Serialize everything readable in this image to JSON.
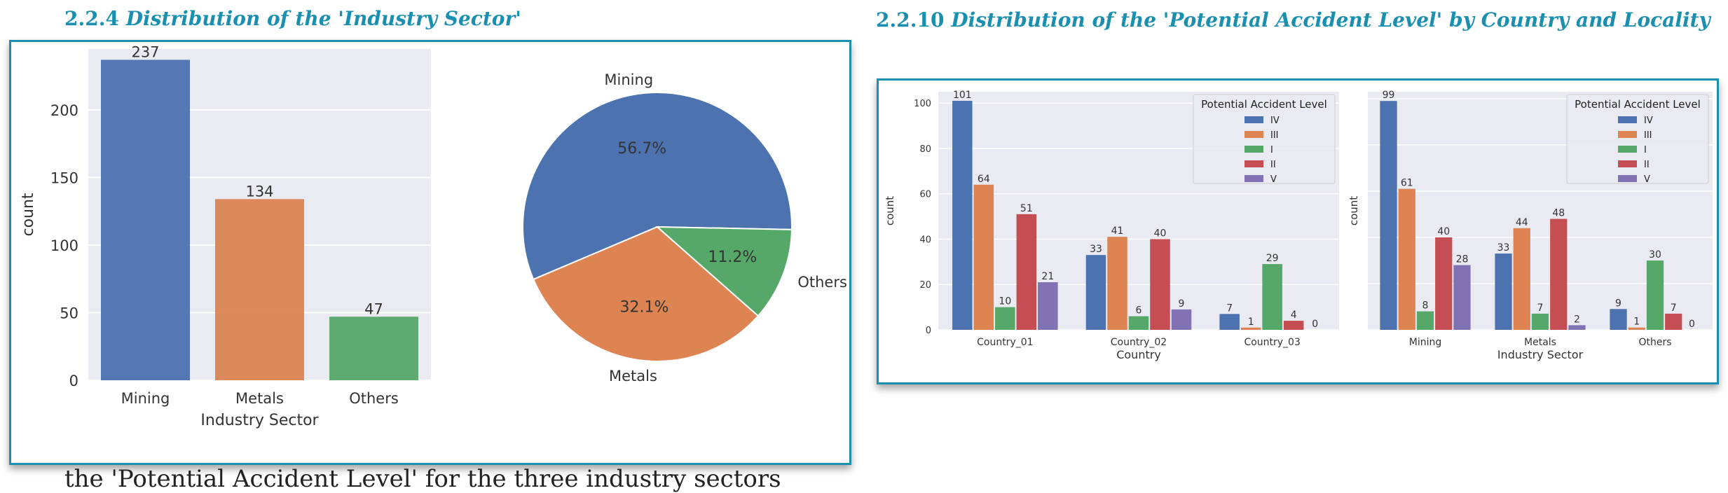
{
  "headings": {
    "left": {
      "number": "2.2.4",
      "text": "Distribution of  the 'Industry Sector'"
    },
    "right": {
      "number": "2.2.10",
      "text": "Distribution of the 'Potential Accident Level' by Country and Locality"
    }
  },
  "colors": {
    "blue": "#4c72b0",
    "orange": "#dd8452",
    "green": "#55a868",
    "red": "#c44e52",
    "purple": "#8172b3",
    "accent": "#1a8fb0",
    "grid_bg": "#eaeaf2"
  },
  "footer_text": "the 'Potential Accident Level' for the three industry sectors",
  "chart_data": [
    {
      "type": "bar",
      "categories": [
        "Mining",
        "Metals",
        "Others"
      ],
      "values": [
        237,
        134,
        47
      ],
      "value_labels": [
        "237",
        "134",
        "47"
      ],
      "xlabel": "Industry Sector",
      "ylabel": "count",
      "ylim": [
        0,
        245
      ],
      "yticks": [
        0,
        50,
        100,
        150,
        200
      ],
      "ytick_labels": [
        "0",
        "50",
        "100",
        "150",
        "200"
      ],
      "colors": [
        "#4c72b0",
        "#dd8452",
        "#55a868"
      ]
    },
    {
      "type": "pie",
      "labels": [
        "Mining",
        "Metals",
        "Others"
      ],
      "values": [
        56.7,
        32.1,
        11.2
      ],
      "pct_labels": [
        "56.7%",
        "32.1%",
        "11.2%"
      ],
      "colors": [
        "#4c72b0",
        "#dd8452",
        "#55a868"
      ]
    },
    {
      "type": "bar",
      "categories": [
        "Country_01",
        "Country_02",
        "Country_03"
      ],
      "xlabel": "Country",
      "ylabel": "count",
      "ylim": [
        0,
        105
      ],
      "yticks": [
        0,
        20,
        40,
        60,
        80,
        100
      ],
      "ytick_labels": [
        "0",
        "20",
        "40",
        "60",
        "80",
        "100"
      ],
      "legend_title": "Potential Accident Level",
      "legend_position": "top-right",
      "series": [
        {
          "name": "IV",
          "values": [
            101,
            33,
            7
          ]
        },
        {
          "name": "III",
          "values": [
            64,
            41,
            1
          ]
        },
        {
          "name": "I",
          "values": [
            10,
            6,
            29
          ]
        },
        {
          "name": "II",
          "values": [
            51,
            40,
            4
          ]
        },
        {
          "name": "V",
          "values": [
            21,
            9,
            0
          ]
        }
      ],
      "value_labels": [
        [
          "101",
          "33",
          "7"
        ],
        [
          "64",
          "41",
          "1"
        ],
        [
          "10",
          "6",
          "29"
        ],
        [
          "51",
          "40",
          "4"
        ],
        [
          "21",
          "9",
          "0"
        ]
      ]
    },
    {
      "type": "bar",
      "categories": [
        "Mining",
        "Metals",
        "Others"
      ],
      "xlabel": "Industry Sector",
      "ylabel": "count",
      "ylim": [
        0,
        103
      ],
      "legend_title": "Potential Accident Level",
      "legend_position": "top-right",
      "series": [
        {
          "name": "IV",
          "values": [
            99,
            33,
            9
          ]
        },
        {
          "name": "III",
          "values": [
            61,
            44,
            1
          ]
        },
        {
          "name": "I",
          "values": [
            8,
            7,
            30
          ]
        },
        {
          "name": "II",
          "values": [
            40,
            48,
            7
          ]
        },
        {
          "name": "V",
          "values": [
            28,
            2,
            0
          ]
        }
      ],
      "value_labels": [
        [
          "99",
          "33",
          "9"
        ],
        [
          "61",
          "44",
          "1"
        ],
        [
          "8",
          "7",
          "30"
        ],
        [
          "40",
          "48",
          "7"
        ],
        [
          "28",
          "2",
          "0"
        ]
      ]
    }
  ]
}
